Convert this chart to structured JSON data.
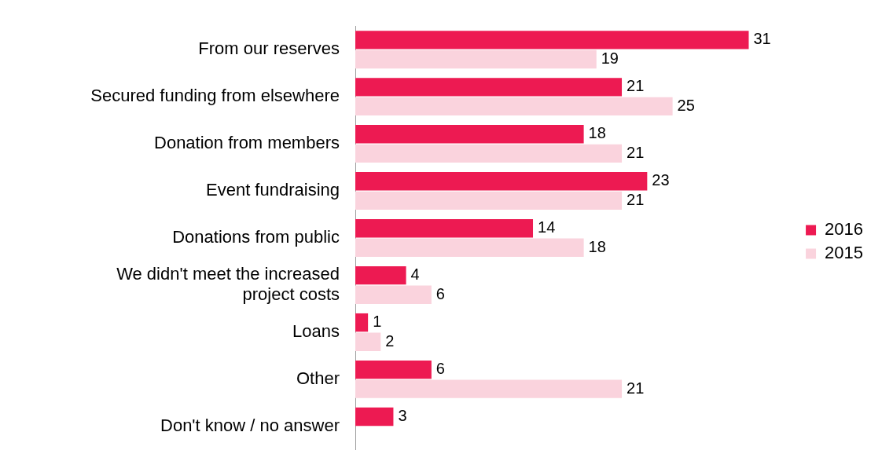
{
  "chart_data": {
    "type": "bar",
    "orientation": "horizontal",
    "categories": [
      "From our reserves",
      "Secured funding from elsewhere",
      "Donation from members",
      "Event fundraising",
      "Donations from public",
      "We didn't meet the increased project costs",
      "Loans",
      "Other",
      "Don't know / no answer"
    ],
    "series": [
      {
        "name": "2016",
        "color": "#ed1a52",
        "values": [
          31,
          21,
          18,
          23,
          14,
          4,
          1,
          6,
          3
        ]
      },
      {
        "name": "2015",
        "color": "#fad3dd",
        "values": [
          19,
          25,
          21,
          21,
          18,
          6,
          2,
          21,
          null
        ]
      }
    ],
    "data_labels": true,
    "legend": "right",
    "grid": false
  }
}
